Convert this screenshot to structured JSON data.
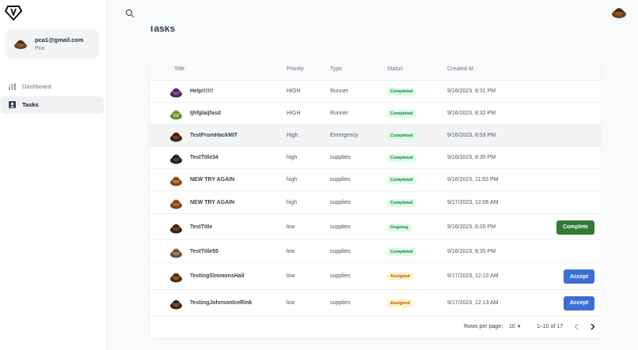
{
  "sidebar": {
    "user": {
      "email": "pca1@gmail.com",
      "name": "Pca"
    },
    "nav": [
      {
        "label": "Dashboard",
        "icon": "chart-icon",
        "active": false
      },
      {
        "label": "Tasks",
        "icon": "user-badge-icon",
        "active": true
      }
    ]
  },
  "main": {
    "title": "Tasks",
    "columns": [
      "Title",
      "Priority",
      "Type",
      "Status",
      "Created At"
    ],
    "rows": [
      {
        "title": "Help!!!!!!",
        "priority": "HIGH",
        "type": "Runner",
        "status": "Completed",
        "created": "9/16/2023, 8:31 PM",
        "action": ""
      },
      {
        "title": "Ijhfglaijfasd",
        "priority": "HIGH",
        "type": "Runner",
        "status": "Completed",
        "created": "9/16/2023, 8:32 PM",
        "action": ""
      },
      {
        "title": "TestFromHackMIT",
        "priority": "High",
        "type": "Emergency",
        "status": "Completed",
        "created": "9/16/2023, 8:53 PM",
        "action": ""
      },
      {
        "title": "TestTitle34",
        "priority": "high",
        "type": "supplies",
        "status": "Completed",
        "created": "9/16/2023, 8:35 PM",
        "action": ""
      },
      {
        "title": "NEW TRY AGAIN",
        "priority": "high",
        "type": "supplies",
        "status": "Completed",
        "created": "9/16/2023, 11:53 PM",
        "action": ""
      },
      {
        "title": "NEW TRY AGAIN",
        "priority": "high",
        "type": "supplies",
        "status": "Completed",
        "created": "9/17/2023, 12:06 AM",
        "action": ""
      },
      {
        "title": "TestTitle",
        "priority": "low",
        "type": "supplies",
        "status": "Ongoing",
        "created": "9/16/2023, 8:20 PM",
        "action": "Complete"
      },
      {
        "title": "TestTitle55",
        "priority": "low",
        "type": "supplies",
        "status": "Completed",
        "created": "9/16/2023, 8:35 PM",
        "action": ""
      },
      {
        "title": "TestingSImmonsHall",
        "priority": "low",
        "type": "supplies",
        "status": "Assigned",
        "created": "9/17/2023, 12:10 AM",
        "action": "Accept"
      },
      {
        "title": "TestingJohnsonIceRink",
        "priority": "low",
        "type": "supplies",
        "status": "Assigned",
        "created": "9/17/2023, 12:13 AM",
        "action": "Accept"
      }
    ],
    "pagination": {
      "rows_per_page_label": "Rows per page:",
      "rows_per_page": "10",
      "range": "1–10 of 17"
    }
  },
  "colors": {
    "complete_button": "#2e7d32",
    "accept_button": "#3b6fd4",
    "completed_badge": "#15803d",
    "assigned_badge": "#b45309"
  }
}
